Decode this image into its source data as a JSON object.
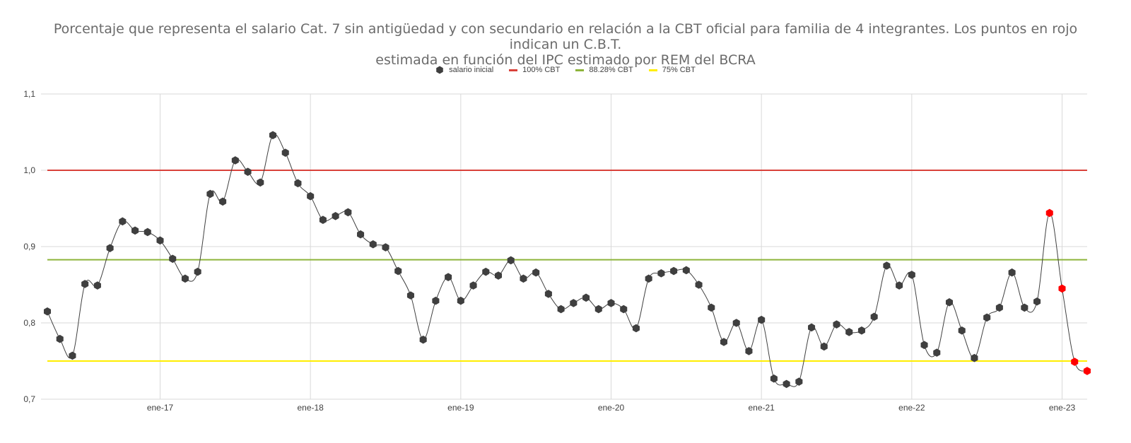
{
  "chart_data": {
    "type": "line",
    "title": "Porcentaje que representa el salario Cat. 7 sin antigüedad y con secundario en relación a la CBT oficial para familia de 4 integrantes. Los puntos en rojo indican un C.B.T. estimada en función del IPC estimado por REM del BCRA",
    "title_lines": [
      "Porcentaje que representa el salario Cat. 7 sin antigüedad y con secundario en relación a la CBT oficial para familia de 4 integrantes. Los puntos en rojo indican un C.B.T.",
      "estimada en función del IPC estimado por REM del BCRA"
    ],
    "xlabel": "",
    "ylabel": "",
    "ylim": [
      0.7,
      1.1
    ],
    "yticks": [
      "0,7",
      "0,8",
      "0,9",
      "1,0",
      "1,1"
    ],
    "xticks": [
      "ene-17",
      "ene-18",
      "ene-19",
      "ene-20",
      "ene-21",
      "ene-22",
      "ene-23"
    ],
    "grid": true,
    "legend_position": "top",
    "x_start": "2016-04",
    "x_end": "2023-03",
    "series": [
      {
        "name": "salario inicial",
        "kind": "markers-smooth-line",
        "marker_color": "#3f3f3f",
        "line_color": "#404040",
        "values": [
          0.815,
          0.779,
          0.757,
          0.851,
          0.849,
          0.898,
          0.933,
          0.921,
          0.919,
          0.908,
          0.884,
          0.858,
          0.867,
          0.969,
          0.959,
          1.013,
          0.998,
          0.984,
          1.046,
          1.023,
          0.983,
          0.966,
          0.935,
          0.94,
          0.945,
          0.916,
          0.903,
          0.899,
          0.868,
          0.836,
          0.778,
          0.829,
          0.86,
          0.829,
          0.849,
          0.867,
          0.862,
          0.882,
          0.858,
          0.866,
          0.838,
          0.818,
          0.826,
          0.833,
          0.818,
          0.826,
          0.818,
          0.793,
          0.858,
          0.865,
          0.868,
          0.869,
          0.85,
          0.82,
          0.775,
          0.8,
          0.763,
          0.804,
          0.727,
          0.72,
          0.723,
          0.794,
          0.769,
          0.798,
          0.788,
          0.79,
          0.808,
          0.875,
          0.849,
          0.863,
          0.771,
          0.761,
          0.827,
          0.79,
          0.754,
          0.807,
          0.82,
          0.866,
          0.82,
          0.828,
          0.944,
          0.845,
          0.749,
          0.737
        ],
        "estimated_flags": [
          false,
          false,
          false,
          false,
          false,
          false,
          false,
          false,
          false,
          false,
          false,
          false,
          false,
          false,
          false,
          false,
          false,
          false,
          false,
          false,
          false,
          false,
          false,
          false,
          false,
          false,
          false,
          false,
          false,
          false,
          false,
          false,
          false,
          false,
          false,
          false,
          false,
          false,
          false,
          false,
          false,
          false,
          false,
          false,
          false,
          false,
          false,
          false,
          false,
          false,
          false,
          false,
          false,
          false,
          false,
          false,
          false,
          false,
          false,
          false,
          false,
          false,
          false,
          false,
          false,
          false,
          false,
          false,
          false,
          false,
          false,
          false,
          false,
          false,
          false,
          false,
          false,
          false,
          false,
          false,
          true,
          true,
          true,
          true
        ],
        "estimated_color": "#ff0000"
      },
      {
        "name": "100% CBT",
        "kind": "hline",
        "value": 1.0,
        "color": "#d9413a"
      },
      {
        "name": "88.28% CBT",
        "kind": "hline",
        "value": 0.8828,
        "color": "#8db43a"
      },
      {
        "name": "75% CBT",
        "kind": "hline",
        "value": 0.75,
        "color": "#ffee00"
      }
    ]
  }
}
